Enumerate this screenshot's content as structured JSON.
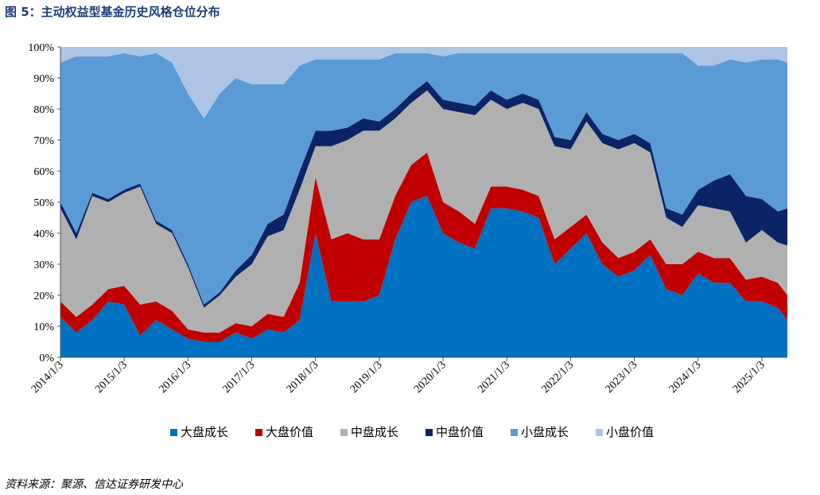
{
  "title": "图 5：主动权益型基金历史风格仓位分布",
  "source": "资料来源：聚源、信达证券研发中心",
  "chart_data": {
    "type": "area",
    "stacked": true,
    "y_unit": "%",
    "ylim": [
      0,
      100
    ],
    "y_ticks": [
      "0%",
      "10%",
      "20%",
      "30%",
      "40%",
      "50%",
      "60%",
      "70%",
      "80%",
      "90%",
      "100%"
    ],
    "x_ticks": [
      "2014/1/3",
      "2015/1/3",
      "2016/1/3",
      "2017/1/3",
      "2018/1/3",
      "2019/1/3",
      "2020/1/3",
      "2021/1/3",
      "2022/1/3",
      "2023/1/3",
      "2024/1/3",
      "2025/1/3"
    ],
    "x": [
      2014.0,
      2014.25,
      2014.5,
      2014.75,
      2015.0,
      2015.25,
      2015.5,
      2015.75,
      2016.0,
      2016.25,
      2016.5,
      2016.75,
      2017.0,
      2017.25,
      2017.5,
      2017.75,
      2018.0,
      2018.25,
      2018.5,
      2018.75,
      2019.0,
      2019.25,
      2019.5,
      2019.75,
      2020.0,
      2020.25,
      2020.5,
      2020.75,
      2021.0,
      2021.25,
      2021.5,
      2021.75,
      2022.0,
      2022.25,
      2022.5,
      2022.75,
      2023.0,
      2023.25,
      2023.5,
      2023.75,
      2024.0,
      2024.25,
      2024.5,
      2024.75,
      2025.0,
      2025.25,
      2025.4
    ],
    "legend_position": "bottom",
    "grid": false,
    "series": [
      {
        "name": "大盘成长",
        "color": "#0070c0",
        "values": [
          13,
          8,
          12,
          18,
          17,
          7,
          12,
          9,
          6,
          5,
          5,
          8,
          6,
          9,
          8,
          12,
          40,
          18,
          18,
          18,
          20,
          38,
          50,
          52,
          40,
          37,
          35,
          48,
          48,
          47,
          45,
          30,
          35,
          40,
          30,
          26,
          28,
          33,
          22,
          20,
          27,
          24,
          24,
          18,
          18,
          16,
          12
        ]
      },
      {
        "name": "大盘价值",
        "color": "#c00000",
        "values": [
          5,
          5,
          5,
          4,
          6,
          10,
          6,
          6,
          3,
          3,
          3,
          3,
          4,
          5,
          5,
          12,
          18,
          20,
          22,
          20,
          18,
          14,
          12,
          14,
          10,
          10,
          8,
          7,
          7,
          7,
          7,
          8,
          7,
          6,
          7,
          6,
          6,
          5,
          8,
          10,
          7,
          8,
          8,
          7,
          8,
          8,
          8
        ]
      },
      {
        "name": "中盘成长",
        "color": "#b0b0b0",
        "values": [
          30,
          25,
          35,
          28,
          30,
          38,
          25,
          25,
          20,
          8,
          12,
          15,
          20,
          25,
          28,
          30,
          10,
          30,
          30,
          35,
          35,
          25,
          20,
          20,
          30,
          32,
          35,
          28,
          25,
          28,
          28,
          30,
          25,
          30,
          32,
          35,
          35,
          28,
          15,
          12,
          15,
          16,
          15,
          12,
          15,
          13,
          16
        ]
      },
      {
        "name": "中盘价值",
        "color": "#0b2466",
        "values": [
          2,
          2,
          1,
          1,
          1,
          1,
          1,
          1,
          1,
          1,
          1,
          2,
          3,
          4,
          5,
          6,
          5,
          5,
          4,
          4,
          3,
          3,
          3,
          3,
          3,
          3,
          3,
          3,
          3,
          3,
          3,
          3,
          3,
          3,
          3,
          3,
          3,
          3,
          3,
          4,
          5,
          9,
          12,
          15,
          10,
          10,
          12
        ]
      },
      {
        "name": "小盘成长",
        "color": "#5b9bd5",
        "values": [
          45,
          57,
          44,
          46,
          44,
          41,
          54,
          54,
          55,
          60,
          64,
          62,
          55,
          45,
          42,
          34,
          23,
          23,
          22,
          19,
          20,
          18,
          13,
          9,
          14,
          16,
          17,
          12,
          15,
          13,
          15,
          27,
          28,
          19,
          26,
          28,
          26,
          29,
          50,
          52,
          40,
          37,
          37,
          43,
          45,
          49,
          47
        ]
      },
      {
        "name": "小盘价值",
        "color": "#aec4e5",
        "values": [
          5,
          3,
          3,
          3,
          2,
          3,
          2,
          5,
          15,
          23,
          15,
          10,
          12,
          12,
          12,
          6,
          4,
          4,
          4,
          4,
          4,
          2,
          2,
          2,
          3,
          2,
          2,
          2,
          2,
          2,
          2,
          2,
          2,
          2,
          2,
          2,
          2,
          2,
          2,
          2,
          6,
          6,
          4,
          5,
          4,
          4,
          5
        ]
      }
    ]
  }
}
